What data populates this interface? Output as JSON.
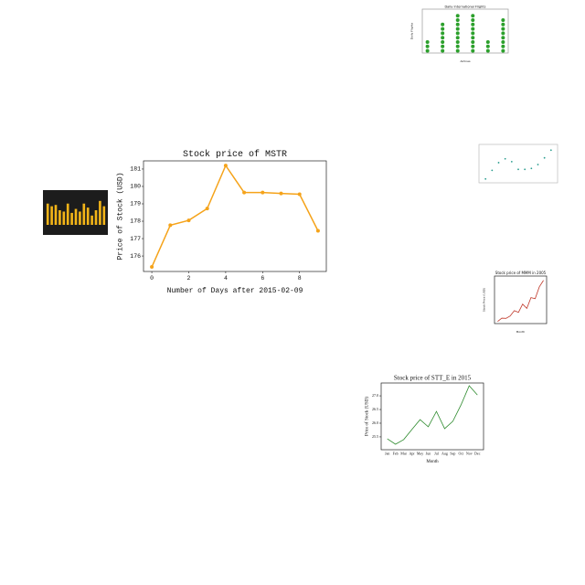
{
  "chart_data": [
    {
      "type": "line",
      "title": "Stock price of MSTR",
      "xlabel": "Number of Days after 2015-02-09",
      "ylabel": "Price of Stock (USD)",
      "x": [
        0,
        1,
        2,
        3,
        4,
        5,
        6,
        7,
        8,
        9
      ],
      "values": [
        175.37,
        177.77,
        178.05,
        178.73,
        181.2,
        179.65,
        179.65,
        179.6,
        179.55,
        177.45
      ],
      "xlim": [
        -0.45,
        9.45
      ],
      "ylim": [
        175.11,
        181.47
      ],
      "xticks": [
        0,
        2,
        4,
        6,
        8
      ],
      "yticks": [
        176,
        177,
        178,
        179,
        180,
        181
      ],
      "color": "#f5a31a",
      "markers": true
    },
    {
      "type": "line",
      "title": "Stock price of STT_E in 2015",
      "xlabel": "Month",
      "ylabel": "Price of Stock (USD)",
      "categories": [
        "Jan",
        "Feb",
        "Mar",
        "Apr",
        "May",
        "Jun",
        "Jul",
        "Aug",
        "Sep",
        "Oct",
        "Nov",
        "Dec"
      ],
      "values": [
        25.43,
        25.23,
        25.4,
        25.77,
        26.13,
        25.87,
        26.43,
        25.8,
        26.07,
        26.67,
        27.37,
        27.03
      ],
      "ylim": [
        25.03,
        27.47
      ],
      "yticks": [
        25.5,
        {
          "value": 26,
          "label": "26.0"
        },
        26.5,
        {
          "value": 27,
          "label": "27.0"
        }
      ],
      "color": "#2e8b2e",
      "markers": false
    },
    {
      "type": "line",
      "title": "Stock price of MMM in 2005",
      "xlabel": "Month",
      "ylabel": "Stock Price (USD)",
      "values": [
        71,
        72.5,
        72.4,
        73.5,
        76,
        75.2,
        79,
        77,
        82,
        81.5,
        87,
        90
      ],
      "ylim": [
        70,
        92
      ],
      "color": "#c0392b",
      "markers": false
    },
    {
      "type": "dot",
      "title": "Daily International Flights",
      "xlabel": "Airlines",
      "ylabel": "Daily Flights",
      "values": [
        3,
        7,
        9,
        9,
        3,
        8
      ],
      "ylim": [
        0,
        10
      ],
      "color": "#2ca02c"
    },
    {
      "type": "scatter",
      "x": [
        0,
        1,
        2,
        3,
        4,
        5,
        6,
        7,
        8,
        9,
        10
      ],
      "values": [
        4,
        13,
        21,
        25,
        22,
        14,
        14,
        15,
        19,
        26,
        34
      ],
      "xlim": [
        -1,
        11
      ],
      "ylim": [
        0,
        40
      ],
      "color": "#2a9d8f"
    },
    {
      "type": "bar",
      "values": [
        8,
        7,
        7.5,
        5.5,
        5,
        8,
        4.5,
        6,
        5,
        8,
        6.5,
        3.5,
        5.5,
        9,
        7
      ],
      "ylim": [
        0,
        11
      ],
      "color": "#f2b418"
    }
  ]
}
